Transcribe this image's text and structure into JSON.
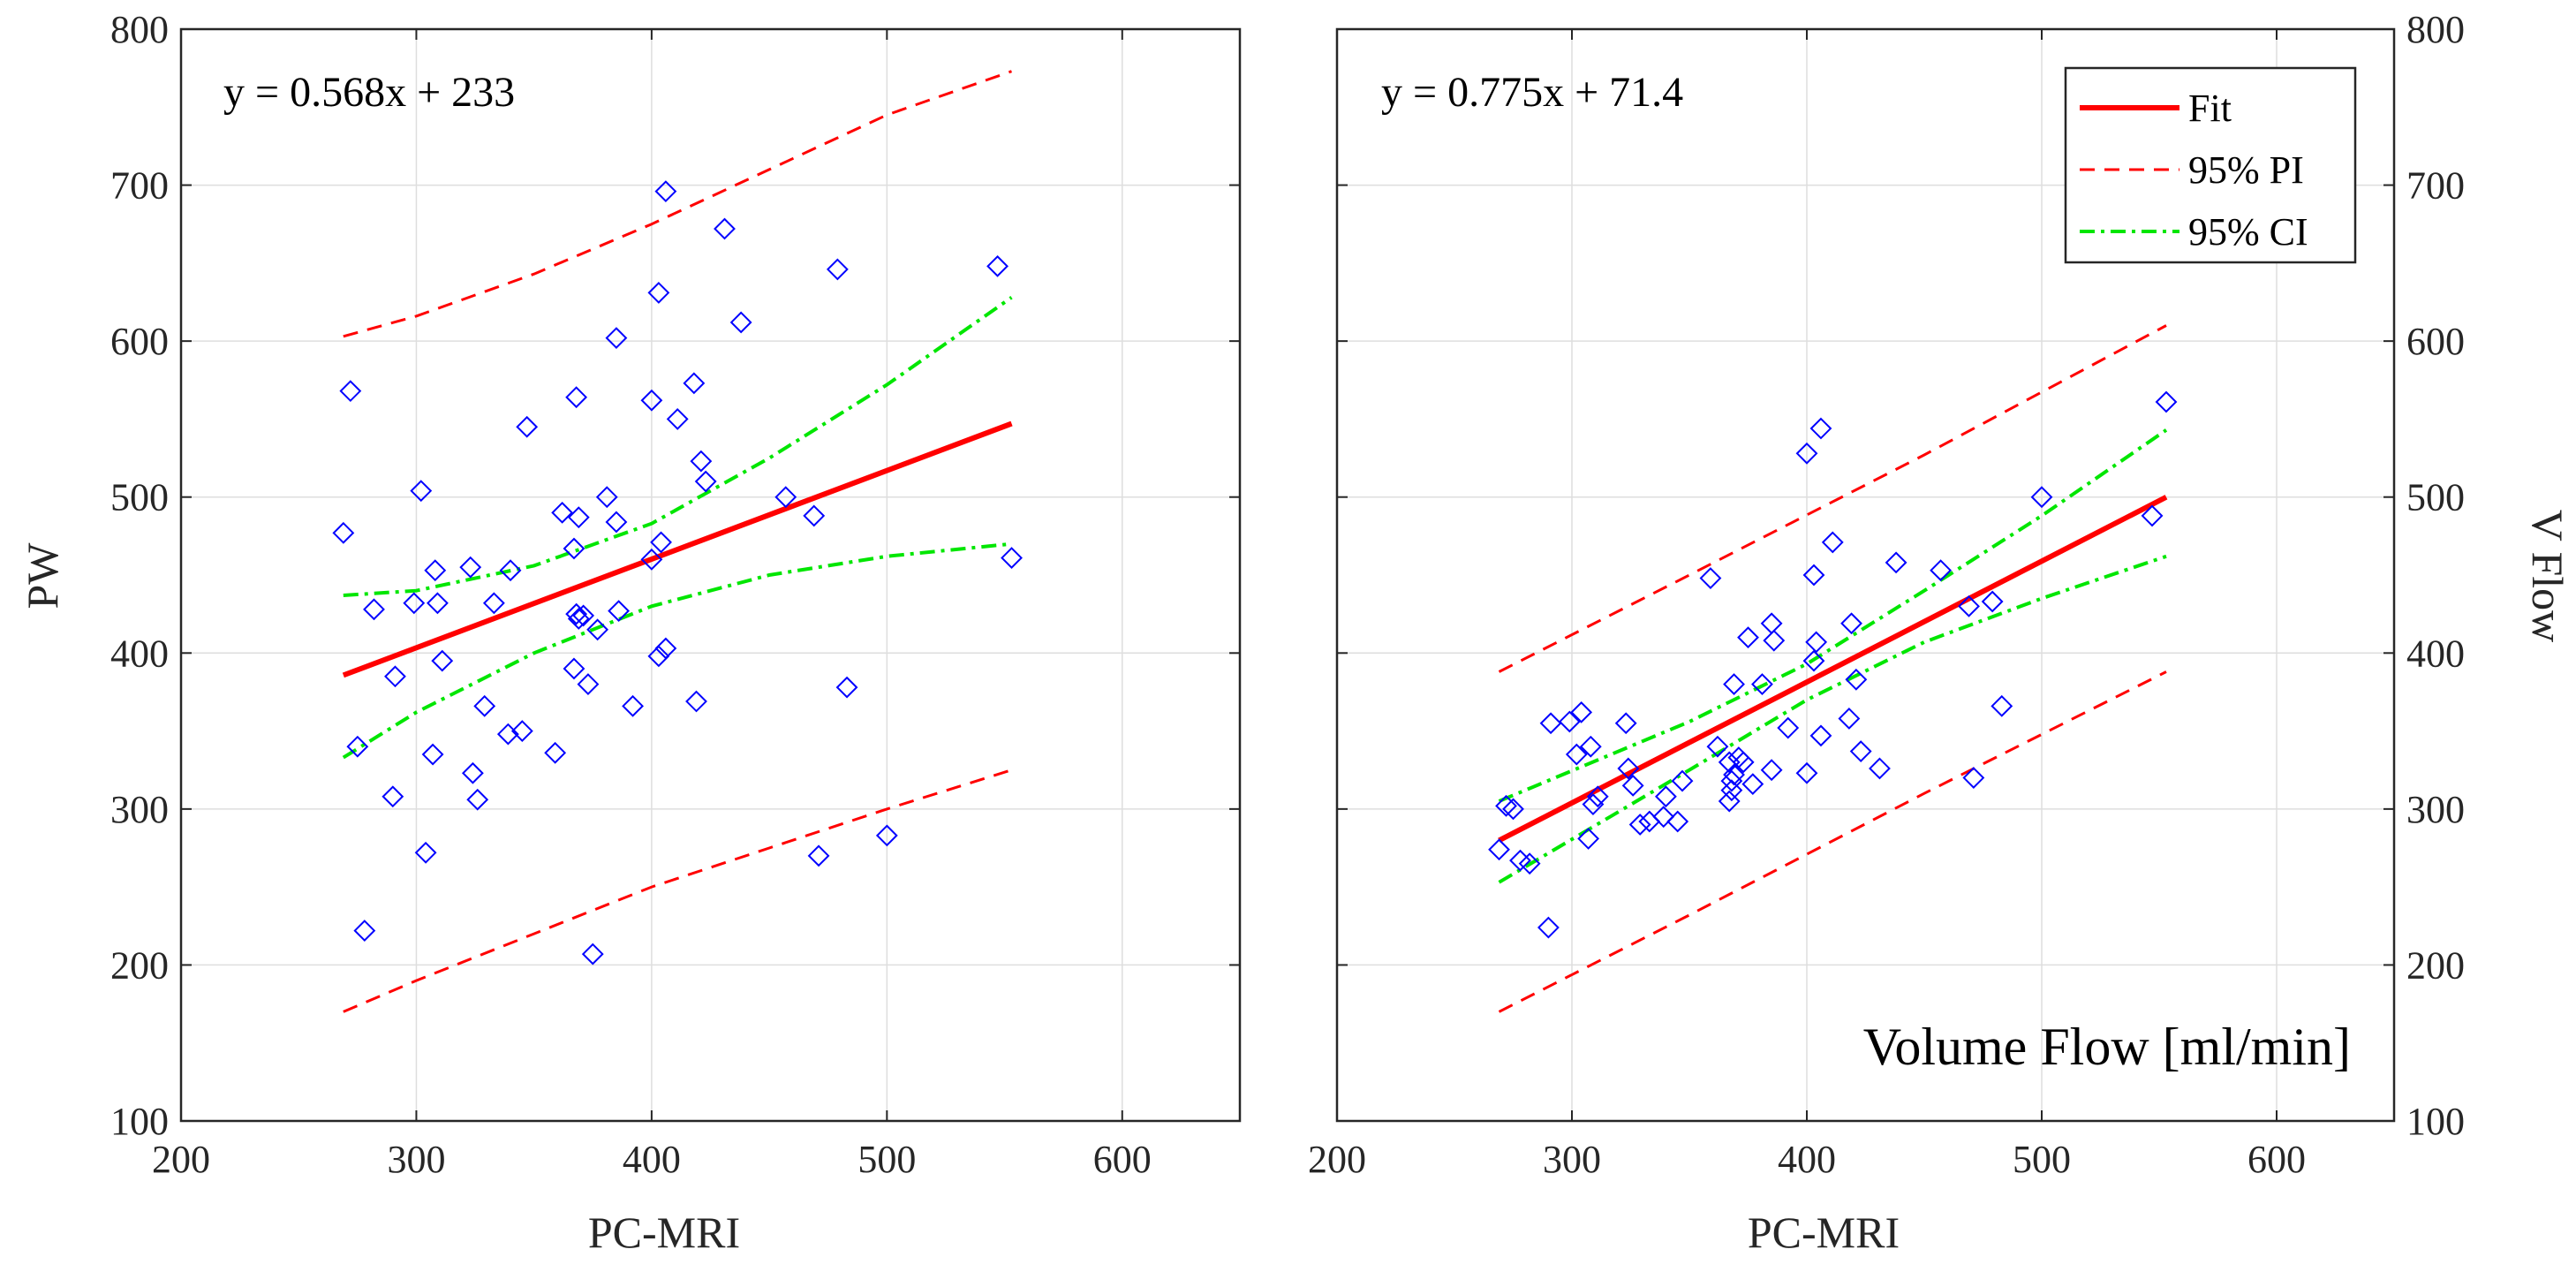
{
  "chart_data": [
    {
      "type": "scatter",
      "panel": "left",
      "xlabel": "PC-MRI",
      "ylabel": "PW",
      "xlim": [
        200,
        650
      ],
      "ylim": [
        100,
        800
      ],
      "xticks": [
        "200",
        "300",
        "400",
        "500",
        "600"
      ],
      "yticks": [
        "100",
        "200",
        "300",
        "400",
        "500",
        "600",
        "700",
        "800"
      ],
      "grid": true,
      "equation": "y = 0.568x + 233",
      "fit": {
        "slope": 0.568,
        "intercept": 233,
        "x_range": [
          269,
          553
        ]
      },
      "pi_upper": [
        [
          269,
          603
        ],
        [
          300,
          616
        ],
        [
          350,
          643
        ],
        [
          400,
          675
        ],
        [
          450,
          710
        ],
        [
          500,
          745
        ],
        [
          553,
          773
        ]
      ],
      "pi_lower": [
        [
          269,
          170
        ],
        [
          300,
          190
        ],
        [
          350,
          220
        ],
        [
          400,
          250
        ],
        [
          450,
          275
        ],
        [
          500,
          300
        ],
        [
          553,
          325
        ]
      ],
      "ci_upper": [
        [
          269,
          437
        ],
        [
          300,
          440
        ],
        [
          350,
          456
        ],
        [
          400,
          483
        ],
        [
          450,
          525
        ],
        [
          500,
          572
        ],
        [
          553,
          628
        ]
      ],
      "ci_lower": [
        [
          269,
          333
        ],
        [
          300,
          362
        ],
        [
          350,
          400
        ],
        [
          400,
          430
        ],
        [
          450,
          450
        ],
        [
          500,
          462
        ],
        [
          553,
          470
        ]
      ],
      "points": [
        [
          269,
          477
        ],
        [
          272,
          568
        ],
        [
          275,
          340
        ],
        [
          278,
          222
        ],
        [
          282,
          428
        ],
        [
          290,
          308
        ],
        [
          291,
          385
        ],
        [
          299,
          432
        ],
        [
          302,
          504
        ],
        [
          304,
          272
        ],
        [
          307,
          335
        ],
        [
          308,
          453
        ],
        [
          309,
          432
        ],
        [
          311,
          395
        ],
        [
          323,
          455
        ],
        [
          324,
          323
        ],
        [
          326,
          306
        ],
        [
          329,
          366
        ],
        [
          333,
          432
        ],
        [
          339,
          348
        ],
        [
          340,
          453
        ],
        [
          345,
          350
        ],
        [
          347,
          545
        ],
        [
          359,
          336
        ],
        [
          362,
          490
        ],
        [
          367,
          467
        ],
        [
          368,
          564
        ],
        [
          367,
          390
        ],
        [
          368,
          425
        ],
        [
          369,
          487
        ],
        [
          369,
          422
        ],
        [
          371,
          424
        ],
        [
          373,
          380
        ],
        [
          375,
          207
        ],
        [
          377,
          415
        ],
        [
          381,
          500
        ],
        [
          385,
          602
        ],
        [
          385,
          484
        ],
        [
          386,
          427
        ],
        [
          392,
          366
        ],
        [
          400,
          562
        ],
        [
          400,
          460
        ],
        [
          403,
          631
        ],
        [
          403,
          398
        ],
        [
          404,
          471
        ],
        [
          406,
          403
        ],
        [
          406,
          696
        ],
        [
          411,
          550
        ],
        [
          418,
          573
        ],
        [
          419,
          369
        ],
        [
          421,
          523
        ],
        [
          423,
          510
        ],
        [
          431,
          672
        ],
        [
          438,
          612
        ],
        [
          457,
          500
        ],
        [
          469,
          488
        ],
        [
          471,
          270
        ],
        [
          479,
          646
        ],
        [
          483,
          378
        ],
        [
          500,
          283
        ],
        [
          547,
          648
        ],
        [
          553,
          461
        ]
      ]
    },
    {
      "type": "scatter",
      "panel": "right",
      "xlabel": "PC-MRI",
      "ylabel": "V Flow",
      "overlay_title": "Volume Flow [ml/min]",
      "xlim": [
        200,
        650
      ],
      "ylim": [
        100,
        800
      ],
      "xticks": [
        "200",
        "300",
        "400",
        "500",
        "600"
      ],
      "yticks": [
        "100",
        "200",
        "300",
        "400",
        "500",
        "600",
        "700",
        "800"
      ],
      "grid": true,
      "equation": "y = 0.775x + 71.4",
      "legend": {
        "position": "top-right",
        "entries": [
          "Fit",
          "95% PI",
          "95% CI"
        ]
      },
      "fit": {
        "slope": 0.775,
        "intercept": 71.4,
        "x_range": [
          269,
          553
        ]
      },
      "pi_upper": [
        [
          269,
          388
        ],
        [
          350,
          450
        ],
        [
          450,
          527
        ],
        [
          553,
          610
        ]
      ],
      "pi_lower": [
        [
          269,
          170
        ],
        [
          350,
          232
        ],
        [
          450,
          310
        ],
        [
          553,
          388
        ]
      ],
      "ci_upper": [
        [
          269,
          305
        ],
        [
          350,
          356
        ],
        [
          400,
          393
        ],
        [
          450,
          440
        ],
        [
          500,
          488
        ],
        [
          553,
          543
        ]
      ],
      "ci_lower": [
        [
          269,
          253
        ],
        [
          350,
          325
        ],
        [
          400,
          370
        ],
        [
          450,
          407
        ],
        [
          500,
          435
        ],
        [
          553,
          462
        ]
      ],
      "points": [
        [
          269,
          274
        ],
        [
          272,
          302
        ],
        [
          275,
          300
        ],
        [
          278,
          267
        ],
        [
          282,
          265
        ],
        [
          290,
          224
        ],
        [
          291,
          355
        ],
        [
          299,
          356
        ],
        [
          302,
          335
        ],
        [
          304,
          362
        ],
        [
          307,
          281
        ],
        [
          308,
          340
        ],
        [
          309,
          303
        ],
        [
          311,
          308
        ],
        [
          323,
          355
        ],
        [
          324,
          326
        ],
        [
          326,
          315
        ],
        [
          329,
          290
        ],
        [
          333,
          292
        ],
        [
          339,
          295
        ],
        [
          340,
          308
        ],
        [
          345,
          292
        ],
        [
          347,
          318
        ],
        [
          359,
          448
        ],
        [
          362,
          340
        ],
        [
          367,
          305
        ],
        [
          368,
          312
        ],
        [
          367,
          330
        ],
        [
          368,
          318
        ],
        [
          369,
          322
        ],
        [
          369,
          380
        ],
        [
          371,
          333
        ],
        [
          373,
          330
        ],
        [
          375,
          410
        ],
        [
          377,
          316
        ],
        [
          381,
          380
        ],
        [
          385,
          325
        ],
        [
          385,
          419
        ],
        [
          386,
          408
        ],
        [
          392,
          352
        ],
        [
          400,
          323
        ],
        [
          400,
          528
        ],
        [
          403,
          395
        ],
        [
          403,
          450
        ],
        [
          404,
          407
        ],
        [
          406,
          544
        ],
        [
          406,
          347
        ],
        [
          411,
          471
        ],
        [
          418,
          358
        ],
        [
          419,
          419
        ],
        [
          421,
          383
        ],
        [
          423,
          337
        ],
        [
          431,
          326
        ],
        [
          438,
          458
        ],
        [
          457,
          453
        ],
        [
          469,
          430
        ],
        [
          471,
          320
        ],
        [
          479,
          433
        ],
        [
          483,
          366
        ],
        [
          500,
          500
        ],
        [
          547,
          488
        ],
        [
          553,
          561
        ]
      ]
    }
  ]
}
